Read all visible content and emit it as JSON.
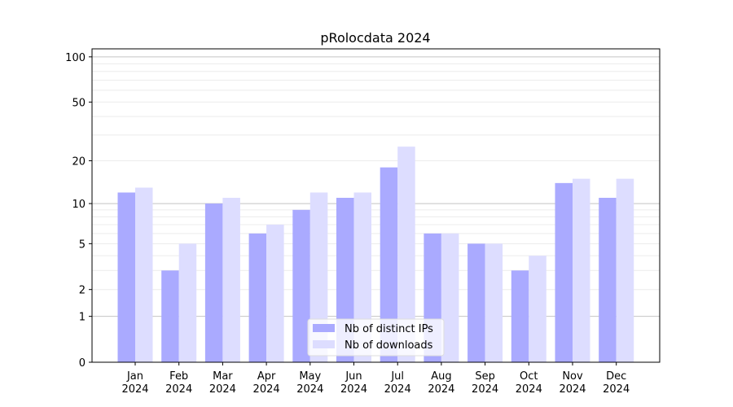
{
  "chart_data": {
    "type": "bar",
    "title": "pRolocdata 2024",
    "xlabel": "",
    "ylabel": "",
    "yscale": "log(y+1)",
    "ylim": [
      0,
      113
    ],
    "yticks": [
      0,
      1,
      2,
      5,
      10,
      20,
      50,
      100
    ],
    "grid": "horizontal, major at 1/10/100, minor light",
    "legend_position": "bottom-center",
    "categories": [
      "Jan\n2024",
      "Feb\n2024",
      "Mar\n2024",
      "Apr\n2024",
      "May\n2024",
      "Jun\n2024",
      "Jul\n2024",
      "Aug\n2024",
      "Sep\n2024",
      "Oct\n2024",
      "Nov\n2024",
      "Dec\n2024"
    ],
    "series": [
      {
        "name": "Nb of distinct IPs",
        "color": "#aaaaff",
        "values": [
          12,
          3,
          10,
          6,
          9,
          11,
          18,
          6,
          5,
          3,
          14,
          11
        ]
      },
      {
        "name": "Nb of downloads",
        "color": "#ddddff",
        "values": [
          13,
          5,
          11,
          7,
          12,
          12,
          25,
          6,
          5,
          4,
          15,
          15
        ]
      }
    ]
  }
}
